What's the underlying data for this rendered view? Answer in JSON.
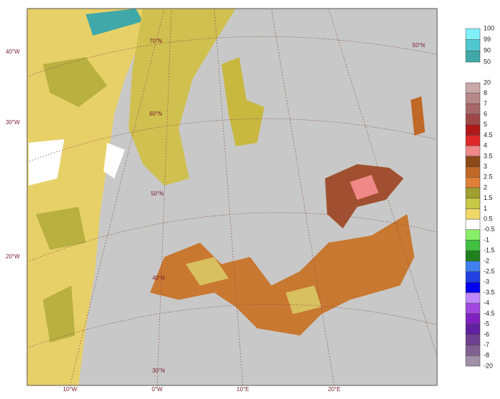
{
  "map": {
    "lon_labels": [
      "10°W",
      "0°W",
      "10°E",
      "20°E"
    ],
    "lat_labels_left": [
      "40°W",
      "30°W",
      "20°W"
    ],
    "graticule_labels": [
      "70°N",
      "60°N",
      "50°N",
      "40°N",
      "30°N",
      "50°N"
    ]
  },
  "legend_top": {
    "labels": [
      100,
      99,
      90,
      50
    ],
    "colors": [
      "#80f0f8",
      "#50c8d0",
      "#40a8a8"
    ]
  },
  "legend_main": {
    "labels": [
      20,
      8,
      7,
      6,
      5,
      4.5,
      4,
      3.5,
      3,
      2.5,
      2,
      1.5,
      1,
      0.5,
      -0.5,
      -1,
      -1.5,
      -2,
      -2.5,
      -3,
      -3.5,
      -4,
      -4.5,
      -5,
      -6,
      -7,
      -8,
      -20
    ],
    "colors": [
      "#c8a8a8",
      "#b88888",
      "#a86868",
      "#a04848",
      "#b01818",
      "#e02828",
      "#f08888",
      "#8b4a18",
      "#c06828",
      "#e08038",
      "#a0a030",
      "#c8c848",
      "#f0d868",
      "#ffffff",
      "#88f068",
      "#40c040",
      "#208020",
      "#4080f0",
      "#2040e0",
      "#0000f0",
      "#c088ff",
      "#a048e0",
      "#8020c0",
      "#6020a0",
      "#704090",
      "#806090",
      "#a090a8"
    ]
  }
}
